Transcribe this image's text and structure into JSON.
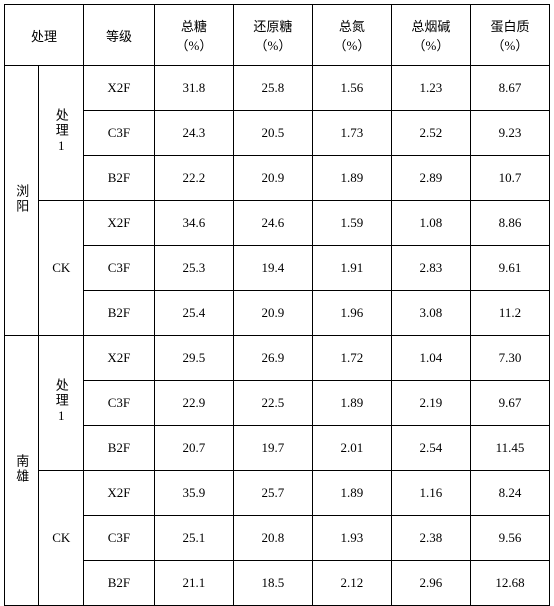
{
  "header": {
    "col0": "处理",
    "col1": "等级",
    "col2_top": "总糖",
    "col2_sub": "（%）",
    "col3_top": "还原糖",
    "col3_sub": "（%）",
    "col4_top": "总氮",
    "col4_sub": "（%）",
    "col5_top": "总烟碱",
    "col5_sub": "（%）",
    "col6_top": "蛋白质",
    "col6_sub": "（%）"
  },
  "regions": [
    {
      "name": "浏阳"
    },
    {
      "name": "南雄"
    }
  ],
  "groups": [
    {
      "label": "处理1"
    },
    {
      "label": "CK"
    },
    {
      "label": "处理1"
    },
    {
      "label": "CK"
    }
  ],
  "rows": [
    {
      "level": "X2F",
      "c0": "31.8",
      "c1": "25.8",
      "c2": "1.56",
      "c3": "1.23",
      "c4": "8.67"
    },
    {
      "level": "C3F",
      "c0": "24.3",
      "c1": "20.5",
      "c2": "1.73",
      "c3": "2.52",
      "c4": "9.23"
    },
    {
      "level": "B2F",
      "c0": "22.2",
      "c1": "20.9",
      "c2": "1.89",
      "c3": "2.89",
      "c4": "10.7"
    },
    {
      "level": "X2F",
      "c0": "34.6",
      "c1": "24.6",
      "c2": "1.59",
      "c3": "1.08",
      "c4": "8.86"
    },
    {
      "level": "C3F",
      "c0": "25.3",
      "c1": "19.4",
      "c2": "1.91",
      "c3": "2.83",
      "c4": "9.61"
    },
    {
      "level": "B2F",
      "c0": "25.4",
      "c1": "20.9",
      "c2": "1.96",
      "c3": "3.08",
      "c4": "11.2"
    },
    {
      "level": "X2F",
      "c0": "29.5",
      "c1": "26.9",
      "c2": "1.72",
      "c3": "1.04",
      "c4": "7.30"
    },
    {
      "level": "C3F",
      "c0": "22.9",
      "c1": "22.5",
      "c2": "1.89",
      "c3": "2.19",
      "c4": "9.67"
    },
    {
      "level": "B2F",
      "c0": "20.7",
      "c1": "19.7",
      "c2": "2.01",
      "c3": "2.54",
      "c4": "11.45"
    },
    {
      "level": "X2F",
      "c0": "35.9",
      "c1": "25.7",
      "c2": "1.89",
      "c3": "1.16",
      "c4": "8.24"
    },
    {
      "level": "C3F",
      "c0": "25.1",
      "c1": "20.8",
      "c2": "1.93",
      "c3": "2.38",
      "c4": "9.56"
    },
    {
      "level": "B2F",
      "c0": "21.1",
      "c1": "18.5",
      "c2": "2.12",
      "c3": "2.96",
      "c4": "12.68"
    }
  ]
}
